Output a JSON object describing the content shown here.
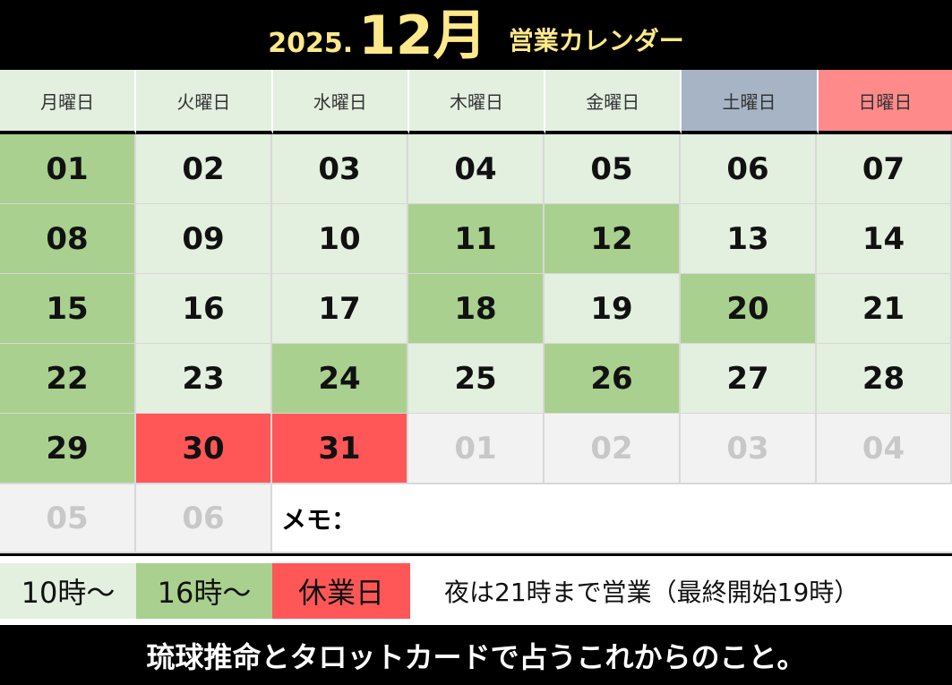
{
  "header": {
    "year": "2025.",
    "month": "12月",
    "suffix": "営業カレンダー"
  },
  "weekdays": [
    "月曜日",
    "火曜日",
    "水曜日",
    "木曜日",
    "金曜日",
    "土曜日",
    "日曜日"
  ],
  "weeks": [
    [
      {
        "d": "01",
        "t": "g"
      },
      {
        "d": "02",
        "t": "n"
      },
      {
        "d": "03",
        "t": "n"
      },
      {
        "d": "04",
        "t": "n"
      },
      {
        "d": "05",
        "t": "n"
      },
      {
        "d": "06",
        "t": "n"
      },
      {
        "d": "07",
        "t": "n"
      }
    ],
    [
      {
        "d": "08",
        "t": "g"
      },
      {
        "d": "09",
        "t": "n"
      },
      {
        "d": "10",
        "t": "n"
      },
      {
        "d": "11",
        "t": "g"
      },
      {
        "d": "12",
        "t": "g"
      },
      {
        "d": "13",
        "t": "n"
      },
      {
        "d": "14",
        "t": "n"
      }
    ],
    [
      {
        "d": "15",
        "t": "g"
      },
      {
        "d": "16",
        "t": "n"
      },
      {
        "d": "17",
        "t": "n"
      },
      {
        "d": "18",
        "t": "g"
      },
      {
        "d": "19",
        "t": "n"
      },
      {
        "d": "20",
        "t": "g"
      },
      {
        "d": "21",
        "t": "n"
      }
    ],
    [
      {
        "d": "22",
        "t": "g"
      },
      {
        "d": "23",
        "t": "n"
      },
      {
        "d": "24",
        "t": "g"
      },
      {
        "d": "25",
        "t": "n"
      },
      {
        "d": "26",
        "t": "g"
      },
      {
        "d": "27",
        "t": "n"
      },
      {
        "d": "28",
        "t": "n"
      }
    ],
    [
      {
        "d": "29",
        "t": "g"
      },
      {
        "d": "30",
        "t": "r"
      },
      {
        "d": "31",
        "t": "r"
      },
      {
        "d": "01",
        "t": "o"
      },
      {
        "d": "02",
        "t": "o"
      },
      {
        "d": "03",
        "t": "o"
      },
      {
        "d": "04",
        "t": "o"
      }
    ]
  ],
  "last_row": {
    "days": [
      "05",
      "06"
    ],
    "memo_label": "メモ："
  },
  "legend": {
    "normal": "10時〜",
    "green": "16時〜",
    "closed": "休業日",
    "note": "夜は21時まで営業（最終開始19時）"
  },
  "footer": {
    "text": "琉球推命とタロットカードで占うこれからのこと。"
  },
  "colors": {
    "normal": "#e3efdf",
    "green": "#a9d08e",
    "closed": "#ff5757",
    "saturday": "#a6b4c6",
    "sunday": "#ff8a8a",
    "header_text": "#ffe98a"
  }
}
